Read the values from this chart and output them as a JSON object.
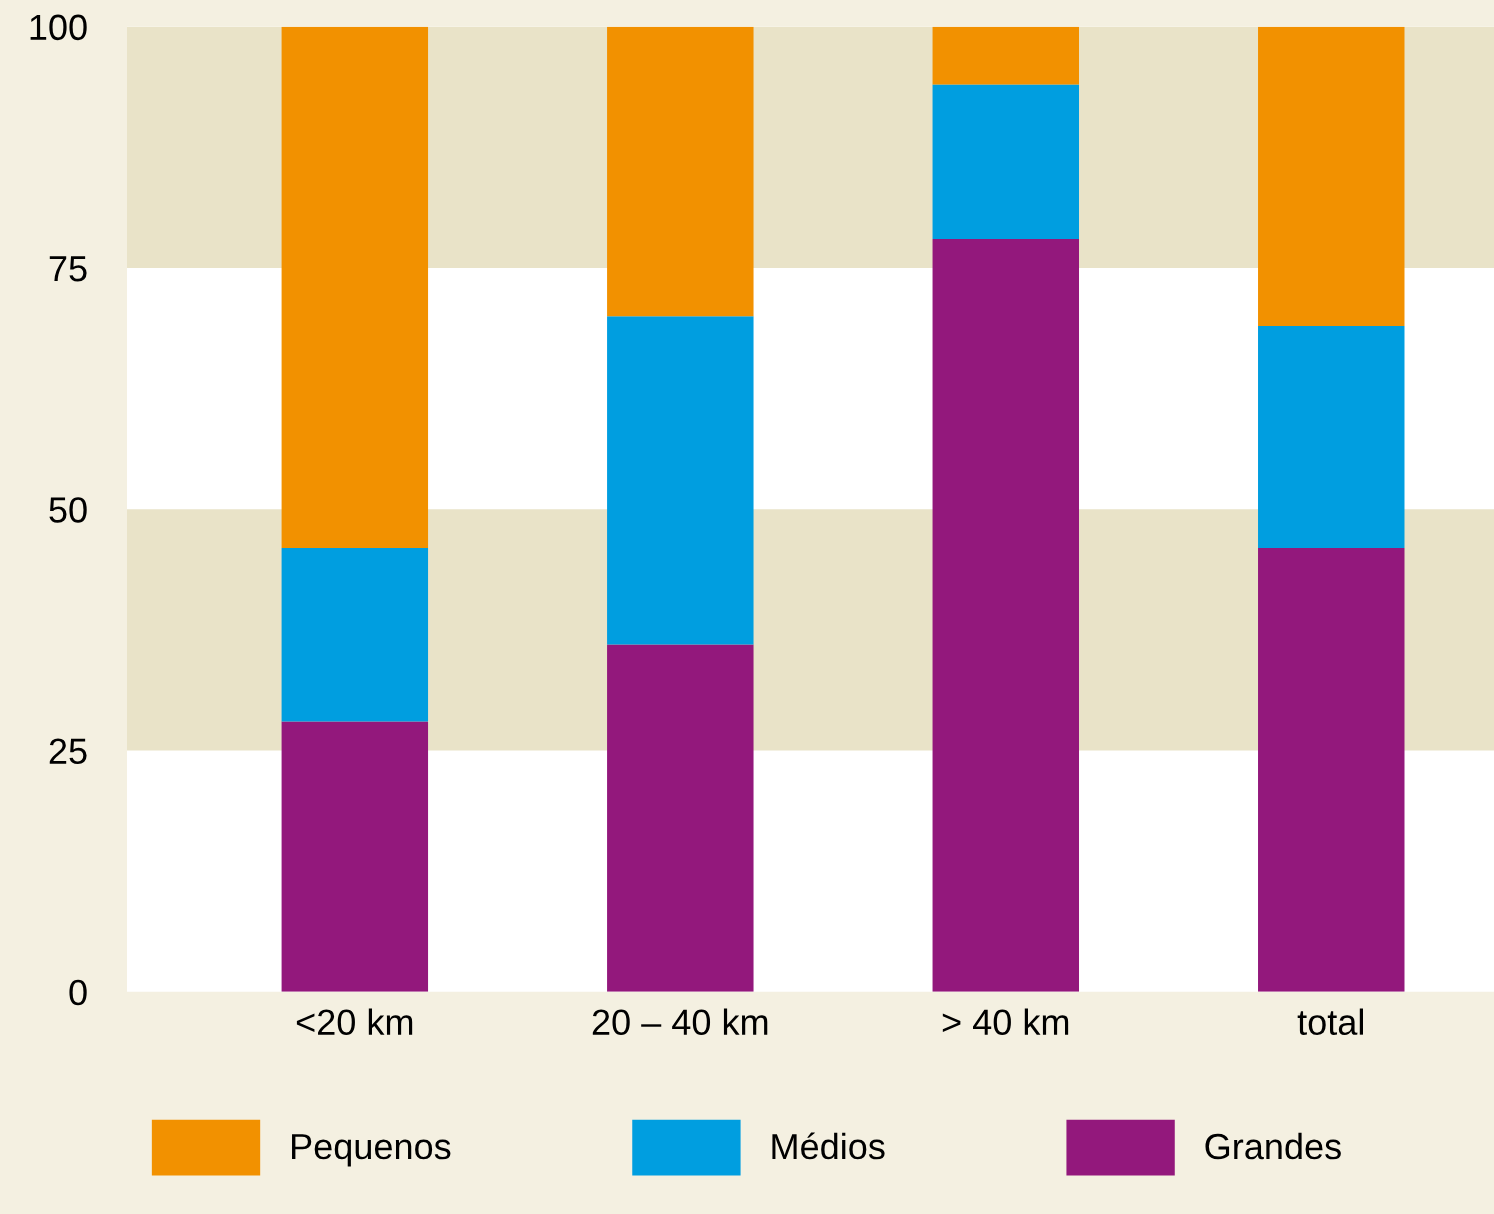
{
  "chart_data": {
    "type": "bar",
    "stacked": true,
    "categories": [
      "<20 km",
      "20 – 40 km",
      "> 40 km",
      "total"
    ],
    "series": [
      {
        "name": "Grandes",
        "color": "#93187c",
        "values": [
          28,
          36,
          78,
          46
        ]
      },
      {
        "name": "Médios",
        "color": "#009ee0",
        "values": [
          18,
          34,
          16,
          23
        ]
      },
      {
        "name": "Pequenos",
        "color": "#f29100",
        "values": [
          54,
          30,
          6,
          31
        ]
      }
    ],
    "ylim": [
      0,
      100
    ],
    "yticks": [
      0,
      25,
      50,
      75,
      100
    ],
    "grid": false,
    "legend": "bottom",
    "bands": [
      {
        "axis": "y",
        "from": 25,
        "to": 50,
        "color": "#e9e3c8"
      },
      {
        "axis": "y",
        "from": 75,
        "to": 100,
        "color": "#e9e3c8"
      }
    ]
  }
}
